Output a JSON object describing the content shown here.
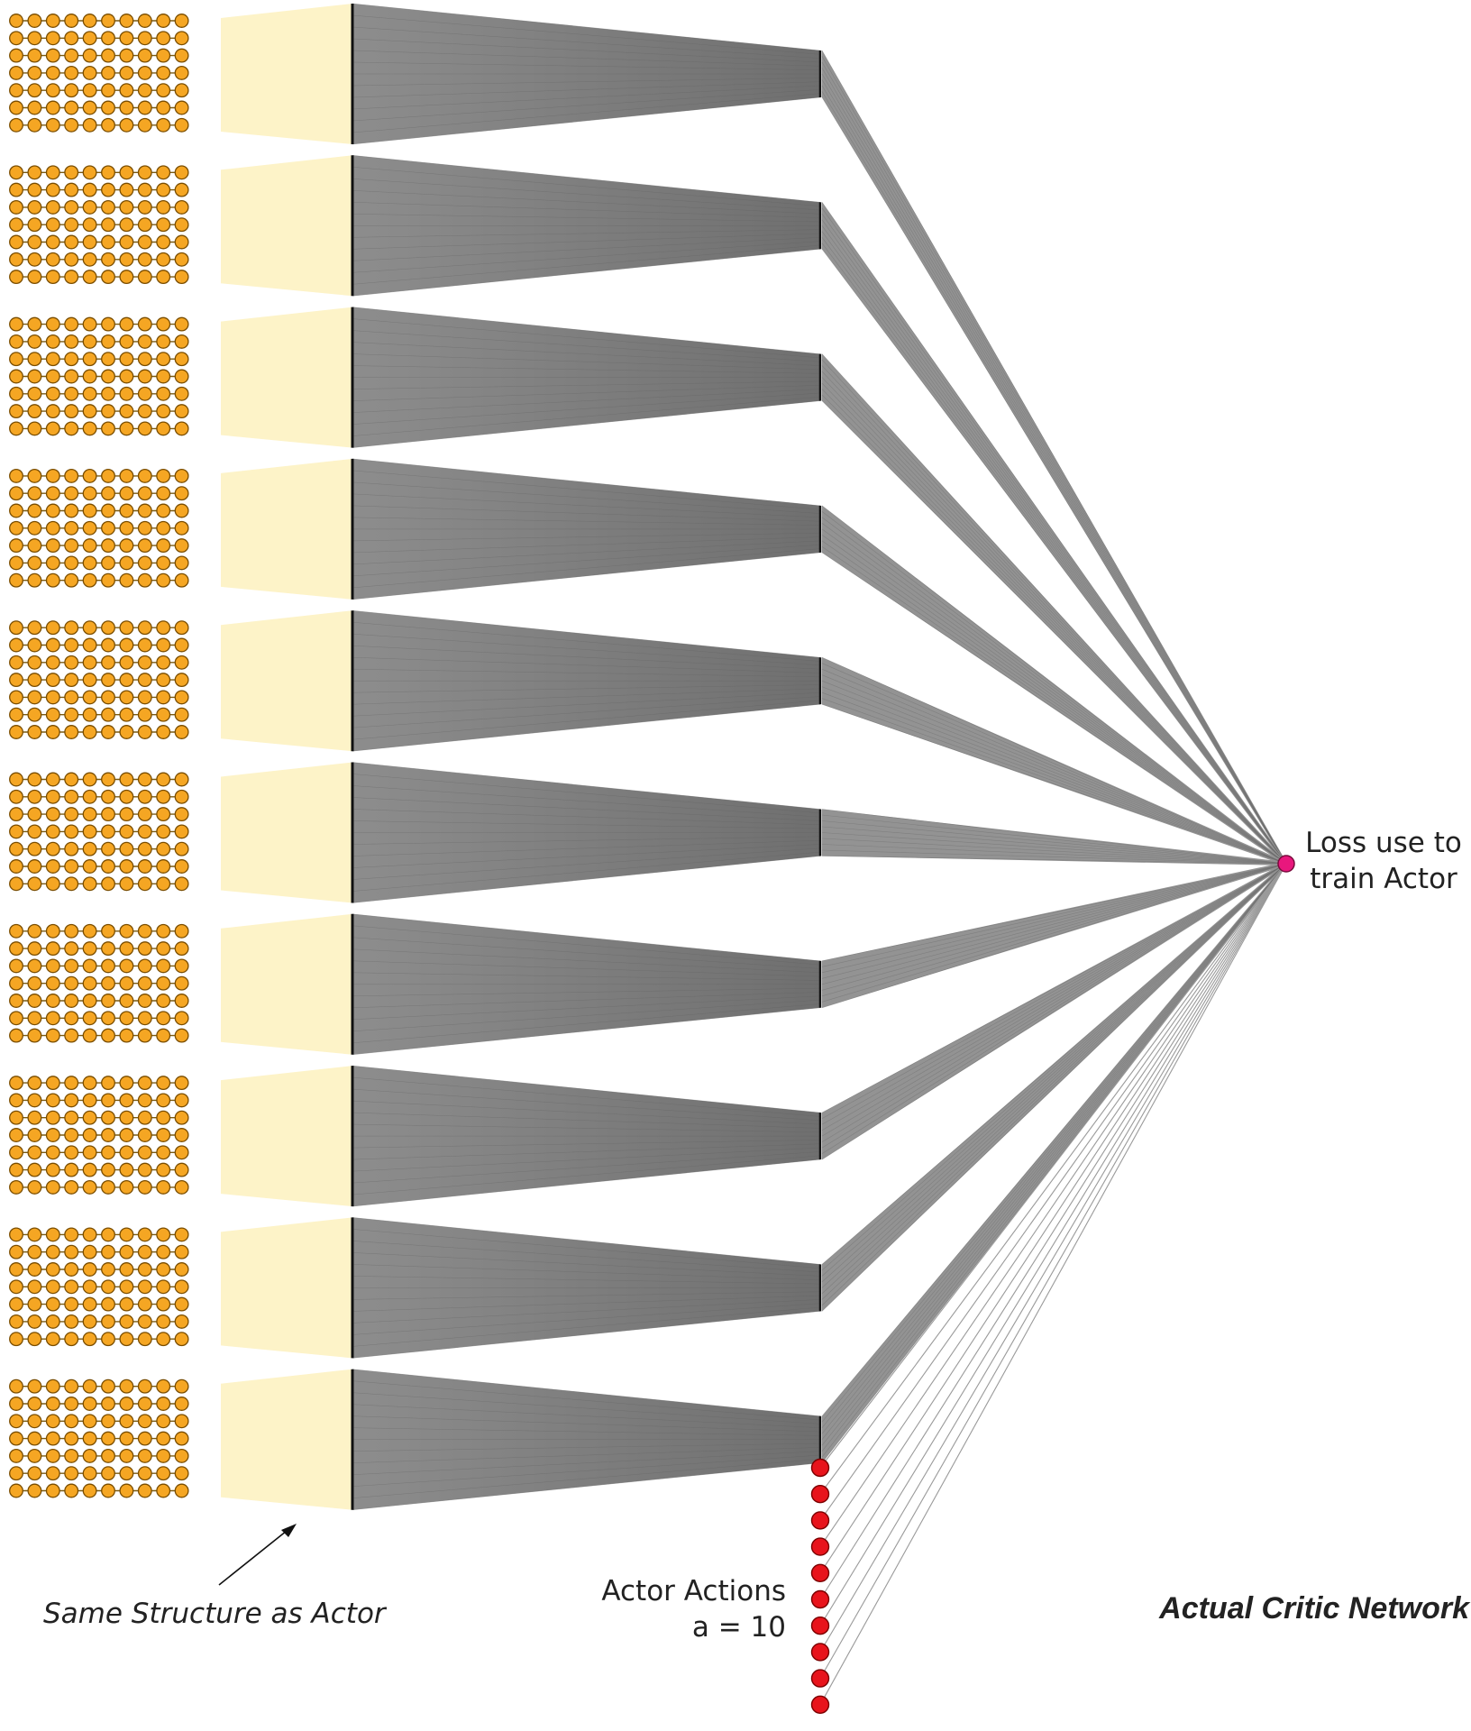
{
  "labels": {
    "same_structure": "Same Structure as Actor",
    "actor_actions_line1": "Actor Actions",
    "actor_actions_line2": "a = 10",
    "loss_line1": "Loss use to",
    "loss_line2": "train Actor",
    "network_title": "Actual Critic Network"
  },
  "structure": {
    "blocks": 10,
    "node_columns": 10,
    "node_rows": 7,
    "action_nodes": 10
  },
  "colors": {
    "input_node_fill": "#f5a623",
    "input_node_stroke": "#7a4d00",
    "projection_fill": "#fdf3c8",
    "connection_gray": "#7f7f7f",
    "action_node_fill": "#e8141c",
    "loss_node_fill": "#e8177d"
  }
}
